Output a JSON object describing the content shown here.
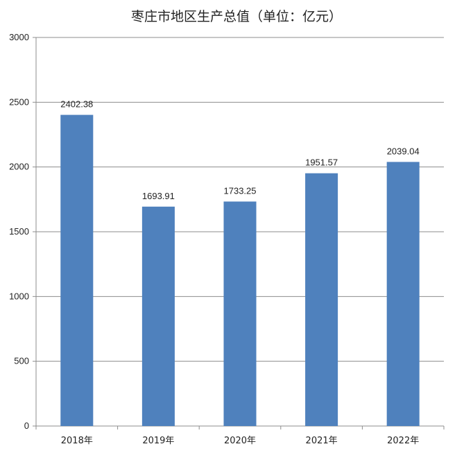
{
  "chart_data": {
    "type": "bar",
    "title": "枣庄市地区生产总值（单位：亿元）",
    "categories": [
      "2018年",
      "2019年",
      "2020年",
      "2021年",
      "2022年"
    ],
    "values": [
      2402.38,
      1693.91,
      1733.25,
      1951.57,
      2039.04
    ],
    "value_labels": [
      "2402.38",
      "1693.91",
      "1733.25",
      "1951.57",
      "2039.04"
    ],
    "ylim": [
      0,
      3000
    ],
    "yticks": [
      0,
      500,
      1000,
      1500,
      2000,
      2500,
      3000
    ],
    "grid": true,
    "legend": "none",
    "colors": {
      "bar": "#4F81BD",
      "grid": "#8C8C8C",
      "axis": "#8C8C8C"
    }
  }
}
